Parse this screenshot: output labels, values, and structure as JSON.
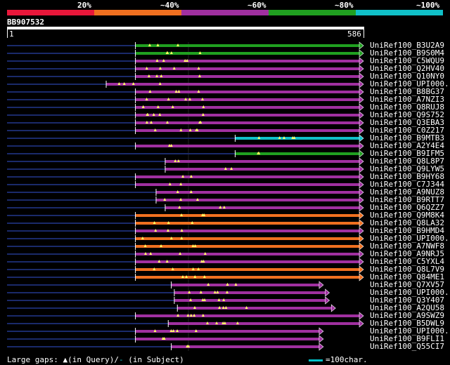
{
  "legend": {
    "labels": [
      "20%",
      "~40%",
      "~60%",
      "~80%",
      "~100%"
    ],
    "colors": [
      "#e8173a",
      "#f07020",
      "#a030a0",
      "#20a020",
      "#10c0c8"
    ]
  },
  "query": {
    "name": "BB907532",
    "start": "1",
    "end": "586"
  },
  "footer": {
    "large_gaps_prefix": "Large gaps:",
    "in_query": "(in Query)/",
    "dash": "-",
    "in_subject": "(in Subject)",
    "scale_label": "=100char."
  },
  "hits": [
    {
      "label": "UniRef100_B3U2A9",
      "color": "#20a020",
      "qs": 211,
      "qe": 586,
      "bridge_start": 211,
      "arrow": true
    },
    {
      "label": "UniRef100_B9S0M4",
      "color": "#20a020",
      "qs": 211,
      "qe": 586,
      "bridge_start": 211,
      "arrow": true
    },
    {
      "label": "UniRef100_C5WQU9",
      "color": "#a030a0",
      "qs": 211,
      "qe": 586,
      "bridge_start": 211,
      "arrow": true
    },
    {
      "label": "UniRef100_Q2HV40",
      "color": "#a030a0",
      "qs": 211,
      "qe": 586,
      "bridge_start": 211,
      "arrow": true
    },
    {
      "label": "UniRef100_Q10NY0",
      "color": "#a030a0",
      "qs": 211,
      "qe": 586,
      "bridge_start": 211,
      "arrow": true
    },
    {
      "label": "UniRef100_UPI000...",
      "color": "#a030a0",
      "qs": 163,
      "qe": 586,
      "bridge_start": 163,
      "arrow": true
    },
    {
      "label": "UniRef100_B8BG37",
      "color": "#a030a0",
      "qs": 211,
      "qe": 586,
      "bridge_start": 211,
      "arrow": true
    },
    {
      "label": "UniRef100_A7NZI3",
      "color": "#a030a0",
      "qs": 211,
      "qe": 586,
      "bridge_start": 211,
      "arrow": true
    },
    {
      "label": "UniRef100_Q8RUJ8",
      "color": "#a030a0",
      "qs": 211,
      "qe": 586,
      "bridge_start": 211,
      "arrow": true
    },
    {
      "label": "UniRef100_Q9S752",
      "color": "#a030a0",
      "qs": 211,
      "qe": 586,
      "bridge_start": 211,
      "arrow": true
    },
    {
      "label": "UniRef100_Q3EBA3",
      "color": "#a030a0",
      "qs": 211,
      "qe": 586,
      "bridge_start": 211,
      "arrow": true
    },
    {
      "label": "UniRef100_C0Z217",
      "color": "#a030a0",
      "qs": 211,
      "qe": 586,
      "bridge_start": 211,
      "arrow": true
    },
    {
      "label": "UniRef100_B9MTB3",
      "color": "#10c0c8",
      "qs": 375,
      "qe": 586,
      "bridge_start": 375,
      "arrow": true
    },
    {
      "label": "UniRef100_A2Y4E4",
      "color": "#a030a0",
      "qs": 211,
      "qe": 586,
      "bridge_start": 211,
      "arrow": true
    },
    {
      "label": "UniRef100_B9IFM5",
      "color": "#20a020",
      "qs": 375,
      "qe": 586,
      "bridge_start": 375,
      "arrow": true
    },
    {
      "label": "UniRef100_Q8L8P7",
      "color": "#a030a0",
      "qs": 260,
      "qe": 586,
      "bridge_start": 260,
      "arrow": true
    },
    {
      "label": "UniRef100_Q9LYW5",
      "color": "#a030a0",
      "qs": 260,
      "qe": 586,
      "bridge_start": 260,
      "arrow": true
    },
    {
      "label": "UniRef100_B9HY68",
      "color": "#a030a0",
      "qs": 211,
      "qe": 586,
      "bridge_start": 211,
      "arrow": true
    },
    {
      "label": "UniRef100_C7J344",
      "color": "#a030a0",
      "qs": 211,
      "qe": 586,
      "bridge_start": 211,
      "arrow": true
    },
    {
      "label": "UniRef100_A9NUZ8",
      "color": "#a030a0",
      "qs": 245,
      "qe": 586,
      "bridge_start": 245,
      "arrow": true
    },
    {
      "label": "UniRef100_B9RTT7",
      "color": "#a030a0",
      "qs": 245,
      "qe": 586,
      "bridge_start": 245,
      "arrow": true
    },
    {
      "label": "UniRef100_Q6QZZ7",
      "color": "#a030a0",
      "qs": 260,
      "qe": 586,
      "bridge_start": 260,
      "arrow": true
    },
    {
      "label": "UniRef100_Q9M8K4",
      "color": "#f07020",
      "qs": 211,
      "qe": 586,
      "bridge_start": 211,
      "arrow": true
    },
    {
      "label": "UniRef100_Q8LA32",
      "color": "#f07020",
      "qs": 211,
      "qe": 586,
      "bridge_start": 211,
      "arrow": true
    },
    {
      "label": "UniRef100_B9HMD4",
      "color": "#a030a0",
      "qs": 211,
      "qe": 586,
      "bridge_start": 211,
      "arrow": true
    },
    {
      "label": "UniRef100_UPI000...",
      "color": "#f07020",
      "qs": 211,
      "qe": 586,
      "bridge_start": 211,
      "arrow": true
    },
    {
      "label": "UniRef100_A7NWF8",
      "color": "#f07020",
      "qs": 211,
      "qe": 586,
      "bridge_start": 211,
      "arrow": true
    },
    {
      "label": "UniRef100_A9NRJ5",
      "color": "#a030a0",
      "qs": 211,
      "qe": 586,
      "bridge_start": 211,
      "arrow": true
    },
    {
      "label": "UniRef100_C5YXL4",
      "color": "#a030a0",
      "qs": 211,
      "qe": 586,
      "bridge_start": 211,
      "arrow": true
    },
    {
      "label": "UniRef100_Q8L7V9",
      "color": "#f07020",
      "qs": 211,
      "qe": 586,
      "bridge_start": 211,
      "arrow": true
    },
    {
      "label": "UniRef100_Q84ME1",
      "color": "#f07020",
      "qs": 211,
      "qe": 586,
      "bridge_start": 211,
      "arrow": true
    },
    {
      "label": "UniRef100_Q7XV57",
      "color": "#a030a0",
      "qs": 270,
      "qe": 520,
      "bridge_start": 270,
      "arrow": true
    },
    {
      "label": "UniRef100_UPI000...",
      "color": "#a030a0",
      "qs": 275,
      "qe": 530,
      "bridge_start": 275,
      "arrow": true
    },
    {
      "label": "UniRef100_Q3Y407",
      "color": "#a030a0",
      "qs": 275,
      "qe": 530,
      "bridge_start": 275,
      "arrow": true
    },
    {
      "label": "UniRef100_A2QU58",
      "color": "#a030a0",
      "qs": 280,
      "qe": 540,
      "bridge_start": 280,
      "arrow": true
    },
    {
      "label": "UniRef100_A9SWZ9",
      "color": "#a030a0",
      "qs": 211,
      "qe": 586,
      "bridge_start": 211,
      "arrow": true
    },
    {
      "label": "UniRef100_B5DWL9",
      "color": "#a030a0",
      "qs": 265,
      "qe": 586,
      "bridge_start": 265,
      "arrow": true
    },
    {
      "label": "UniRef100_UPI000...",
      "color": "#a030a0",
      "qs": 211,
      "qe": 520,
      "bridge_start": 211,
      "arrow": true
    },
    {
      "label": "UniRef100_B9FLI1",
      "color": "#a030a0",
      "qs": 211,
      "qe": 520,
      "bridge_start": 211,
      "arrow": true
    },
    {
      "label": "UniRef100_Q55CI7",
      "color": "#a030a0",
      "qs": 270,
      "qe": 520,
      "bridge_start": 270,
      "arrow": true
    }
  ]
}
